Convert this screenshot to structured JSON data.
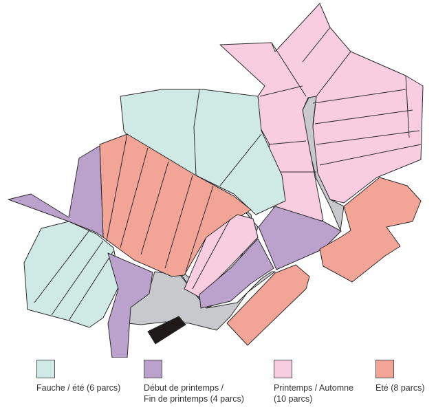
{
  "colors": {
    "fauche_ete": "#cfe9e4",
    "debut_fin_printemps": "#bba2cc",
    "printemps_automne": "#f8cde0",
    "ete": "#f2a597",
    "roads": "#c8c9cc",
    "building": "#1e1a1a"
  },
  "legend": [
    {
      "label": "Fauche / été (6 parcs)",
      "color": "#cfe9e4"
    },
    {
      "label": "Début de printemps /",
      "label2": "Fin de printemps (4 parcs)",
      "color": "#bba2cc"
    },
    {
      "label": "Printemps / Automne",
      "label2": "(10 parcs)",
      "color": "#f8cde0"
    },
    {
      "label": "Eté (8 parcs)",
      "color": "#f2a597"
    }
  ]
}
